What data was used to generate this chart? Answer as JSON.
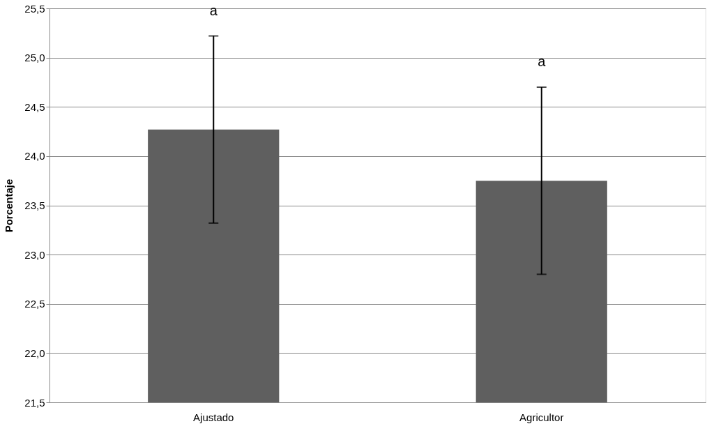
{
  "chart_data": {
    "type": "bar",
    "ylabel": "Porcentaje",
    "categories": [
      "Ajustado",
      "Agricultor"
    ],
    "values": [
      24.27,
      23.75
    ],
    "errors": [
      0.95,
      0.95
    ],
    "color": "#5f5f5f",
    "ylim": [
      21.5,
      25.5
    ],
    "yticks": [
      {
        "value": 21.5,
        "label": "21,5"
      },
      {
        "value": 22.0,
        "label": "22,0"
      },
      {
        "value": 22.5,
        "label": "22,5"
      },
      {
        "value": 23.0,
        "label": "23,0"
      },
      {
        "value": 23.5,
        "label": "23,5"
      },
      {
        "value": 24.0,
        "label": "24,0"
      },
      {
        "value": 24.5,
        "label": "24,5"
      },
      {
        "value": 25.0,
        "label": "25,0"
      },
      {
        "value": 25.5,
        "label": "25,5"
      }
    ],
    "grid": "y",
    "annotations": [
      "a",
      "a"
    ]
  }
}
